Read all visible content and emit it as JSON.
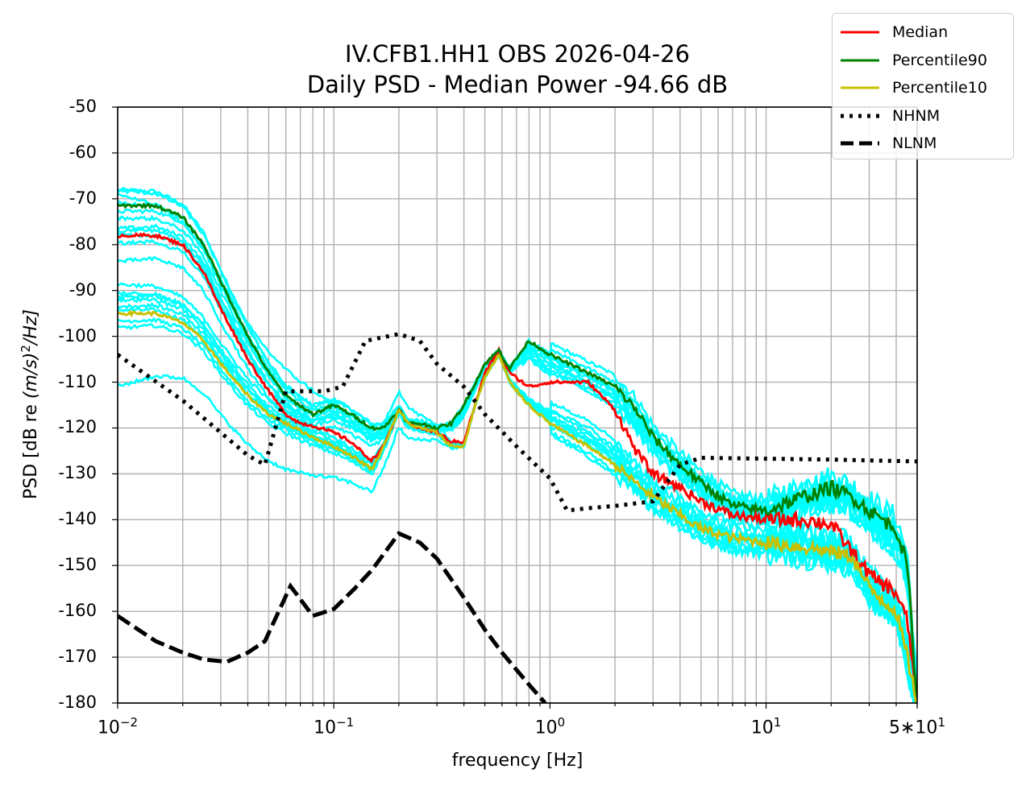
{
  "chart_data": {
    "type": "line",
    "title": "IV.CFB1.HH1 OBS 2026-04-26",
    "subtitle": "Daily PSD - Median Power -94.66 dB",
    "xlabel": "frequency [Hz]",
    "ylabel_prefix": "PSD [dB re ",
    "ylabel_unit": "(m/s)",
    "ylabel_exp": "2",
    "ylabel_suffix": "/Hz]",
    "x_scale": "log",
    "xlim": [
      0.01,
      50
    ],
    "ylim": [
      -180,
      -50
    ],
    "grid": true,
    "legend_placement": "top-right",
    "yticks": [
      "-50",
      "-60",
      "-70",
      "-80",
      "-90",
      "-100",
      "-110",
      "-120",
      "-130",
      "-140",
      "-150",
      "-160",
      "-170",
      "-180"
    ],
    "xticks": [
      {
        "value": 0.01,
        "base": "10",
        "exp": "−2"
      },
      {
        "value": 0.1,
        "base": "10",
        "exp": "−1"
      },
      {
        "value": 1,
        "base": "10",
        "exp": "0"
      },
      {
        "value": 10,
        "base": "10",
        "exp": "1"
      },
      {
        "value": 50,
        "base": "5∗10",
        "exp": "1"
      }
    ],
    "series": [
      {
        "name": "Median",
        "color": "#ff0000",
        "style": "solid",
        "x": [
          0.01,
          0.015,
          0.02,
          0.025,
          0.03,
          0.04,
          0.05,
          0.06,
          0.07,
          0.08,
          0.1,
          0.12,
          0.14,
          0.15,
          0.17,
          0.2,
          0.22,
          0.25,
          0.3,
          0.35,
          0.4,
          0.45,
          0.5,
          0.58,
          0.65,
          0.8,
          1.0,
          1.5,
          2.0,
          2.5,
          3.0,
          4.0,
          5.0,
          7.0,
          10,
          15,
          20,
          25,
          30,
          40,
          45,
          50
        ],
        "y": [
          -78,
          -78,
          -80,
          -86,
          -94,
          -105,
          -112,
          -117,
          -119,
          -119.5,
          -121,
          -123,
          -126,
          -127,
          -124,
          -116,
          -119,
          -120,
          -121,
          -123,
          -123,
          -115,
          -108,
          -103,
          -108,
          -111,
          -110,
          -110,
          -116,
          -125,
          -130,
          -133,
          -136,
          -139,
          -140,
          -140,
          -141,
          -147,
          -152,
          -156,
          -162,
          -180
        ]
      },
      {
        "name": "Percentile90",
        "color": "#008000",
        "style": "solid",
        "x": [
          0.01,
          0.015,
          0.02,
          0.025,
          0.03,
          0.04,
          0.05,
          0.06,
          0.08,
          0.1,
          0.12,
          0.15,
          0.17,
          0.2,
          0.22,
          0.25,
          0.3,
          0.35,
          0.4,
          0.5,
          0.58,
          0.65,
          0.8,
          1.0,
          1.5,
          2.0,
          2.5,
          3.0,
          4.0,
          5.0,
          7.0,
          10,
          15,
          20,
          25,
          30,
          40,
          45,
          50
        ],
        "y": [
          -71.5,
          -71.5,
          -74,
          -80,
          -88,
          -100,
          -108,
          -113,
          -117,
          -115,
          -117,
          -120,
          -120,
          -116,
          -119,
          -119,
          -120,
          -119,
          -115,
          -106,
          -103,
          -107,
          -101,
          -104,
          -108,
          -111,
          -116,
          -122,
          -128,
          -132,
          -137,
          -138,
          -135,
          -133,
          -135,
          -138,
          -142,
          -150,
          -180
        ]
      },
      {
        "name": "Percentile10",
        "color": "#c8c000",
        "style": "solid",
        "x": [
          0.01,
          0.015,
          0.02,
          0.025,
          0.03,
          0.04,
          0.05,
          0.06,
          0.08,
          0.1,
          0.12,
          0.14,
          0.15,
          0.17,
          0.2,
          0.22,
          0.25,
          0.3,
          0.35,
          0.4,
          0.45,
          0.5,
          0.58,
          0.65,
          0.8,
          1.0,
          1.5,
          2.0,
          2.5,
          3.0,
          4.0,
          5.0,
          7.0,
          10,
          15,
          20,
          25,
          30,
          40,
          45,
          50
        ],
        "y": [
          -95,
          -95,
          -97,
          -101,
          -106,
          -113,
          -117,
          -119,
          -122,
          -124,
          -126,
          -128,
          -129,
          -124,
          -116,
          -119,
          -120,
          -121,
          -124,
          -124,
          -115,
          -109,
          -104,
          -110,
          -115,
          -119,
          -124,
          -128,
          -132,
          -135,
          -139,
          -142,
          -144,
          -145,
          -146,
          -147,
          -148,
          -155,
          -160,
          -170,
          -180
        ]
      },
      {
        "name": "NHNM",
        "color": "#000000",
        "style": "dotted",
        "x": [
          0.01,
          0.02,
          0.03,
          0.04,
          0.048,
          0.06,
          0.09,
          0.11,
          0.14,
          0.2,
          0.25,
          0.3,
          0.4,
          0.5,
          0.7,
          1.0,
          1.2,
          1.5,
          2.0,
          3.0,
          4.0,
          5.0,
          10,
          20,
          50
        ],
        "y": [
          -104,
          -114,
          -121,
          -126,
          -128,
          -112,
          -112,
          -111,
          -101,
          -99.5,
          -101,
          -106,
          -111,
          -117,
          -124,
          -131,
          -138,
          -137.5,
          -137,
          -136,
          -128,
          -126.5,
          -126.7,
          -126.9,
          -127.3
        ]
      },
      {
        "name": "NLNM",
        "color": "#000000",
        "style": "dashed",
        "x": [
          0.01,
          0.015,
          0.02,
          0.025,
          0.032,
          0.04,
          0.048,
          0.063,
          0.08,
          0.1,
          0.125,
          0.15,
          0.2,
          0.25,
          0.3,
          0.4,
          0.5,
          0.6,
          0.8,
          0.95
        ],
        "y": [
          -161,
          -166.5,
          -169,
          -170.5,
          -171,
          -169,
          -166.5,
          -154.5,
          -161,
          -159.5,
          -155,
          -151,
          -143,
          -145,
          -148.5,
          -157,
          -164,
          -169,
          -176,
          -180
        ]
      }
    ],
    "background_traces": {
      "color": "#00ffff",
      "count": 20
    }
  }
}
